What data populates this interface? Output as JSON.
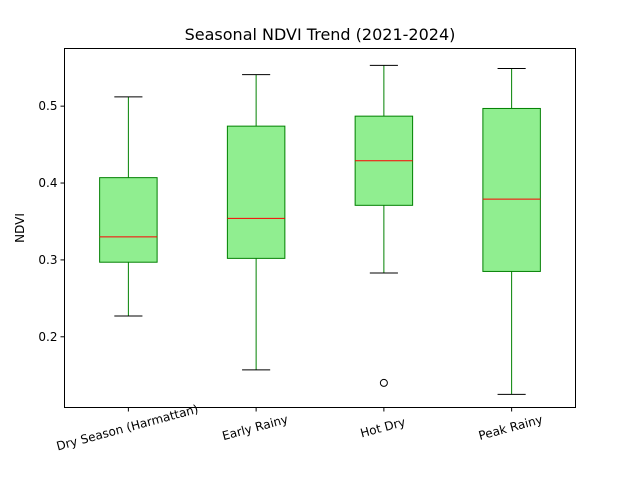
{
  "chart_data": {
    "type": "box",
    "title": "Seasonal NDVI Trend (2021-2024)",
    "xlabel": "",
    "ylabel": "NDVI",
    "ylim": [
      0.108,
      0.575
    ],
    "yticks": [
      0.2,
      0.3,
      0.4,
      0.5
    ],
    "ytick_labels": [
      "0.2",
      "0.3",
      "0.4",
      "0.5"
    ],
    "grid": false,
    "legend": "none",
    "xtick_rotation_deg": 15,
    "categories": [
      "Dry Season (Harmattan)",
      "Early Rainy",
      "Hot Dry",
      "Peak Rainy"
    ],
    "boxes": [
      {
        "category": "Dry Season (Harmattan)",
        "whisker_low": 0.227,
        "q1": 0.297,
        "median": 0.33,
        "q3": 0.407,
        "whisker_high": 0.512,
        "outliers": []
      },
      {
        "category": "Early Rainy",
        "whisker_low": 0.157,
        "q1": 0.302,
        "median": 0.354,
        "q3": 0.474,
        "whisker_high": 0.541,
        "outliers": []
      },
      {
        "category": "Hot Dry",
        "whisker_low": 0.283,
        "q1": 0.371,
        "median": 0.429,
        "q3": 0.487,
        "whisker_high": 0.553,
        "outliers": [
          0.14
        ]
      },
      {
        "category": "Peak Rainy",
        "whisker_low": 0.125,
        "q1": 0.285,
        "median": 0.379,
        "q3": 0.497,
        "whisker_high": 0.549,
        "outliers": []
      }
    ],
    "colors": {
      "box_fill": "#90ee90",
      "box_edge": "#008000",
      "median": "#ff0000",
      "whisker": "#008000",
      "cap": "#000000",
      "outlier": "#000000"
    }
  }
}
